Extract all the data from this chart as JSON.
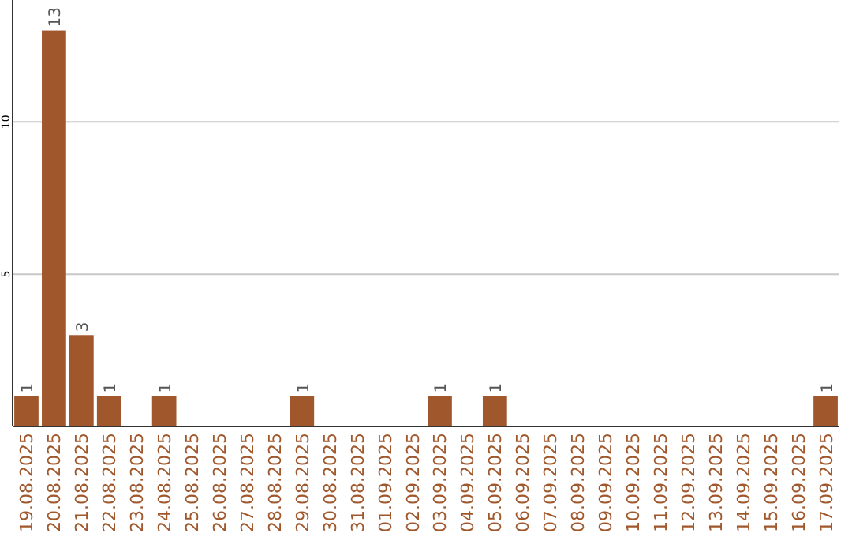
{
  "chart_data": {
    "type": "bar",
    "categories": [
      "19.08.2025",
      "20.08.2025",
      "21.08.2025",
      "22.08.2025",
      "23.08.2025",
      "24.08.2025",
      "25.08.2025",
      "26.08.2025",
      "27.08.2025",
      "28.08.2025",
      "29.08.2025",
      "30.08.2025",
      "31.08.2025",
      "01.09.2025",
      "02.09.2025",
      "03.09.2025",
      "04.09.2025",
      "05.09.2025",
      "06.09.2025",
      "07.09.2025",
      "08.09.2025",
      "09.09.2025",
      "10.09.2025",
      "11.09.2025",
      "12.09.2025",
      "13.09.2025",
      "14.09.2025",
      "15.09.2025",
      "16.09.2025",
      "17.09.2025"
    ],
    "values": [
      1,
      13,
      3,
      1,
      0,
      1,
      0,
      0,
      0,
      0,
      1,
      0,
      0,
      0,
      0,
      1,
      0,
      1,
      0,
      0,
      0,
      0,
      0,
      0,
      0,
      0,
      0,
      0,
      0,
      1
    ],
    "value_labels": [
      "1",
      "13",
      "3",
      "1",
      null,
      "1",
      null,
      null,
      null,
      null,
      "1",
      null,
      null,
      null,
      null,
      "1",
      null,
      "1",
      null,
      null,
      null,
      null,
      null,
      null,
      null,
      null,
      null,
      null,
      null,
      "1"
    ],
    "color": "#a0572b",
    "ylim": [
      0,
      14
    ],
    "yticks": [
      5,
      10
    ],
    "grid": "y"
  }
}
